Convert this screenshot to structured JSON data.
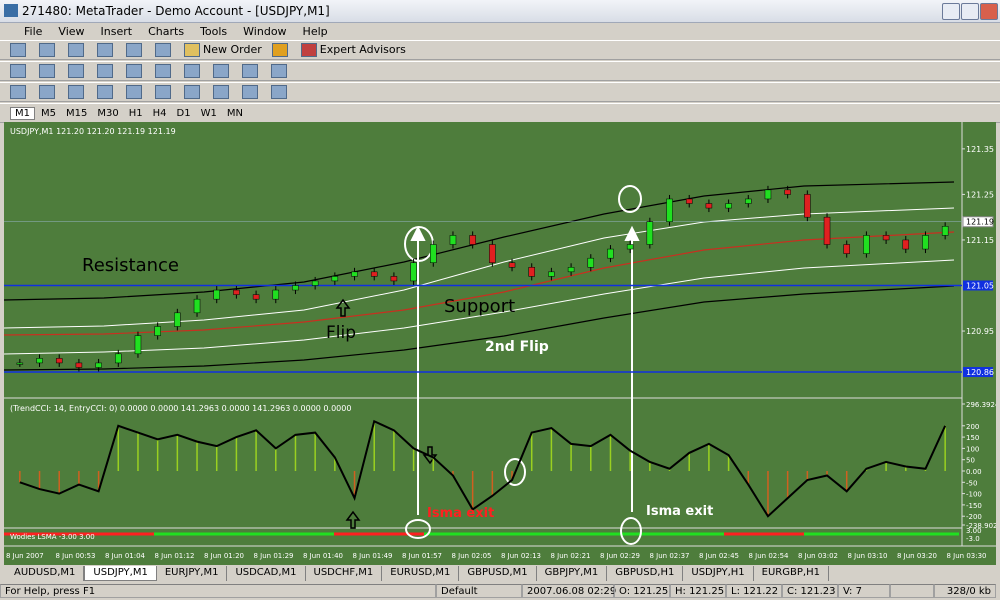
{
  "window": {
    "title": "271480: MetaTrader - Demo Account - [USDJPY,M1]"
  },
  "menu": [
    "File",
    "View",
    "Insert",
    "Charts",
    "Tools",
    "Window",
    "Help"
  ],
  "toolbar": {
    "new_order": "New Order",
    "expert_advisors": "Expert Advisors"
  },
  "timeframes": [
    "M1",
    "M5",
    "M15",
    "M30",
    "H1",
    "H4",
    "D1",
    "W1",
    "MN"
  ],
  "chart": {
    "header": "USDJPY,M1  121.20 121.20 121.19 121.19",
    "price": {
      "ylim": [
        120.803,
        121.398
      ],
      "yticks": [
        121.35,
        121.25,
        121.15,
        120.95
      ],
      "current": 121.19,
      "hlines": [
        121.05,
        120.86
      ],
      "close": [
        120.88,
        120.89,
        120.88,
        120.87,
        120.88,
        120.9,
        120.94,
        120.96,
        120.99,
        121.02,
        121.04,
        121.03,
        121.02,
        121.04,
        121.05,
        121.06,
        121.07,
        121.08,
        121.07,
        121.06,
        121.1,
        121.14,
        121.16,
        121.14,
        121.1,
        121.09,
        121.07,
        121.08,
        121.09,
        121.11,
        121.13,
        121.14,
        121.19,
        121.24,
        121.23,
        121.22,
        121.23,
        121.24,
        121.26,
        121.25,
        121.2,
        121.14,
        121.12,
        121.16,
        121.15,
        121.13,
        121.16,
        121.18
      ]
    },
    "annotations": {
      "resistance": "Resistance",
      "support": "Support",
      "flip": "Flip",
      "second_flip": "2nd Flip",
      "exit_1": "Isma exit",
      "exit_2": "Isma exit"
    },
    "cci": {
      "header": "(TrendCCI: 14, EntryCCI: 0)  0.0000 0.0000 141.2963 0.0000 141.2963 0.0000 0.0000",
      "ylim": [
        -238.902,
        296.3924
      ],
      "yticks": [
        296.3924,
        200,
        150,
        100,
        50,
        {
          "value": 0,
          "label": "0.00"
        },
        -50,
        -100,
        -150,
        -200,
        -238.902
      ],
      "values": [
        -50,
        -80,
        -100,
        -60,
        -90,
        200,
        170,
        140,
        160,
        130,
        110,
        150,
        180,
        100,
        160,
        170,
        60,
        -120,
        220,
        180,
        100,
        60,
        -20,
        -170,
        -110,
        -40,
        170,
        190,
        120,
        110,
        160,
        90,
        40,
        10,
        80,
        120,
        70,
        -60,
        -200,
        -120,
        -40,
        -20,
        -90,
        10,
        40,
        20,
        10,
        200
      ]
    },
    "lsma": {
      "header": "Wodies LSMA -3.00 3.00",
      "yticks": [
        "3.00",
        "-3.0"
      ]
    },
    "time_labels": [
      "8 Jun 2007",
      "8 Jun 00:53",
      "8 Jun 01:04",
      "8 Jun 01:12",
      "8 Jun 01:20",
      "8 Jun 01:29",
      "8 Jun 01:40",
      "8 Jun 01:49",
      "8 Jun 01:57",
      "8 Jun 02:05",
      "8 Jun 02:13",
      "8 Jun 02:21",
      "8 Jun 02:29",
      "8 Jun 02:37",
      "8 Jun 02:45",
      "8 Jun 02:54",
      "8 Jun 03:02",
      "8 Jun 03:10",
      "8 Jun 03:20",
      "8 Jun 03:30"
    ]
  },
  "tabs": [
    "AUDUSD,M1",
    "USDJPY,M1",
    "EURJPY,M1",
    "USDCAD,M1",
    "USDCHF,M1",
    "EURUSD,M1",
    "GBPUSD,M1",
    "GBPJPY,M1",
    "GBPUSD,H1",
    "USDJPY,H1",
    "EURGBP,H1"
  ],
  "status": {
    "help": "For Help, press F1",
    "profile": "Default",
    "time": "2007.06.08 02:29",
    "open": "O: 121.25",
    "high": "H: 121.25",
    "low": "L: 121.22",
    "close": "C: 121.23",
    "volume": "V: 7",
    "traffic": "328/0 kb"
  }
}
